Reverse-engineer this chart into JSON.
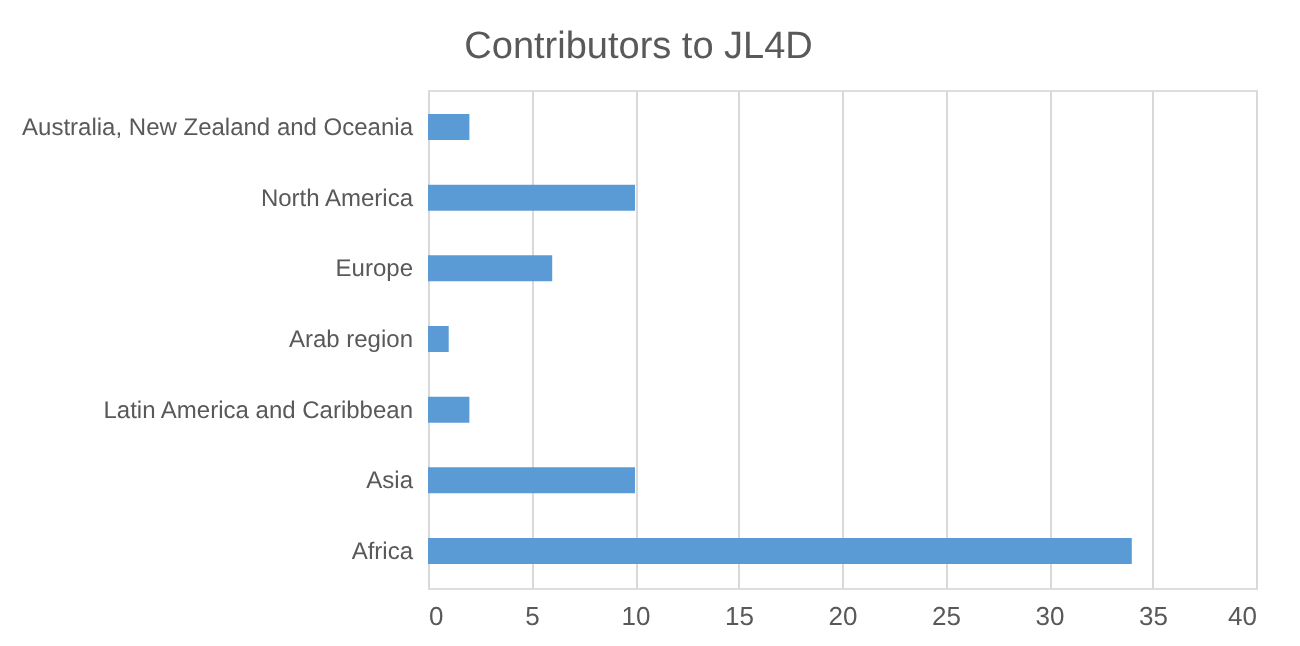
{
  "chart_data": {
    "type": "bar",
    "orientation": "horizontal",
    "title": "Contributors to JL4D",
    "categories": [
      "Australia, New Zealand and Oceania",
      "North America",
      "Europe",
      "Arab region",
      "Latin America and Caribbean",
      "Asia",
      "Africa"
    ],
    "values": [
      2,
      10,
      6,
      1,
      2,
      10,
      34
    ],
    "color": "#5b9bd5",
    "xlim": [
      0,
      40
    ],
    "xticks": [
      0,
      5,
      10,
      15,
      20,
      25,
      30,
      35,
      40
    ],
    "grid": "x"
  }
}
